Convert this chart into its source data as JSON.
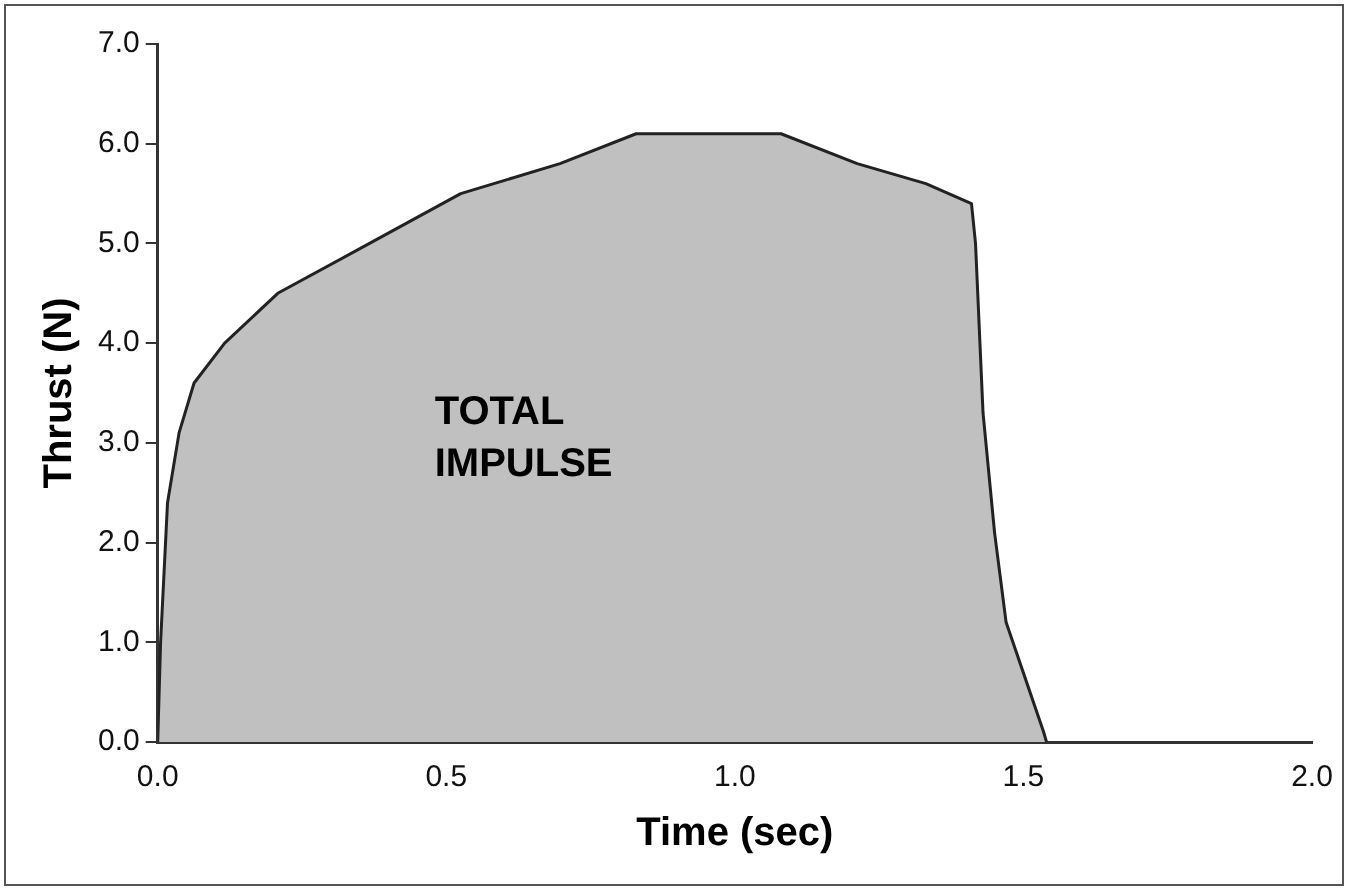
{
  "chart_data": {
    "type": "area",
    "xlabel": "Time (sec)",
    "ylabel": "Thrust (N)",
    "annotations": [
      "TOTAL\nIMPULSE"
    ],
    "x": [
      0,
      0.005,
      0.017,
      0.037,
      0.063,
      0.116,
      0.208,
      0.367,
      0.525,
      0.697,
      0.829,
      0.935,
      0.988,
      1.08,
      1.212,
      1.331,
      1.41,
      1.417,
      1.43,
      1.45,
      1.47,
      1.535,
      1.54
    ],
    "series": [
      {
        "color": "#c0c0c0",
        "values": [
          0,
          1.0,
          2.4,
          3.1,
          3.6,
          4.0,
          4.5,
          5.0,
          5.5,
          5.8,
          6.1,
          6.1,
          6.1,
          6.1,
          5.8,
          5.6,
          5.4,
          5.0,
          3.3,
          2.1,
          1.2,
          0.1,
          0
        ]
      }
    ],
    "xlim": [
      0,
      2
    ],
    "xticks": [
      {
        "value": 0,
        "label": "0.0"
      },
      {
        "value": 0.5,
        "label": "0.5"
      },
      {
        "value": 1,
        "label": "1.0"
      },
      {
        "value": 1.5,
        "label": "1.5"
      },
      {
        "value": 2,
        "label": "2.0"
      }
    ],
    "ylim": [
      0,
      7
    ],
    "yticks": [
      {
        "value": 0,
        "label": "0.0"
      },
      {
        "value": 1,
        "label": "1.0"
      },
      {
        "value": 2,
        "label": "2.0"
      },
      {
        "value": 3,
        "label": "3.0"
      },
      {
        "value": 4,
        "label": "4.0"
      },
      {
        "value": 5,
        "label": "5.0"
      },
      {
        "value": 6,
        "label": "6.0"
      },
      {
        "value": 7,
        "label": "7.0"
      }
    ],
    "grid": false,
    "legend": false
  }
}
